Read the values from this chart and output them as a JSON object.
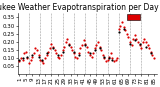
{
  "title": "Milwaukee Weather Evapotranspiration per Day (Ozs sq/ft)",
  "title_fontsize": 5.5,
  "bg_color": "#ffffff",
  "plot_bg_color": "#ffffff",
  "dot_color_red": "#dd0000",
  "dot_color_black": "#000000",
  "legend_bar_color": "#dd0000",
  "legend_bar_outline": "#000000",
  "ylabel_fontsize": 4,
  "xlabel_fontsize": 4,
  "vline_style": "--",
  "vline_color": "#999999",
  "vline_lw": 0.4,
  "dot_size": 2.5,
  "x_values": [
    1,
    2,
    3,
    4,
    5,
    6,
    7,
    8,
    9,
    10,
    11,
    12,
    13,
    14,
    15,
    16,
    17,
    18,
    19,
    20,
    21,
    22,
    23,
    24,
    25,
    26,
    27,
    28,
    29,
    30,
    31,
    32,
    33,
    34,
    35,
    36,
    37,
    38,
    39,
    40,
    41,
    42,
    43,
    44,
    45,
    46,
    47,
    48,
    49,
    50,
    51,
    52,
    53,
    54,
    55,
    56,
    57,
    58,
    59,
    60,
    61,
    62,
    63,
    64,
    65,
    66,
    67,
    68,
    69,
    70,
    71,
    72,
    73,
    74,
    75,
    76,
    77,
    78,
    79,
    80,
    81,
    82,
    83,
    84,
    85
  ],
  "y_values_red": [
    0.08,
    0.1,
    0.09,
    0.13,
    0.14,
    0.1,
    0.07,
    0.09,
    0.11,
    0.13,
    0.16,
    0.15,
    0.12,
    0.09,
    0.08,
    0.07,
    0.1,
    0.12,
    0.14,
    0.16,
    0.19,
    0.17,
    0.15,
    0.13,
    0.11,
    0.1,
    0.12,
    0.15,
    0.17,
    0.2,
    0.22,
    0.19,
    0.17,
    0.15,
    0.13,
    0.11,
    0.1,
    0.13,
    0.16,
    0.18,
    0.21,
    0.19,
    0.17,
    0.14,
    0.12,
    0.11,
    0.13,
    0.16,
    0.18,
    0.2,
    0.17,
    0.15,
    0.12,
    0.1,
    0.08,
    0.09,
    0.11,
    0.13,
    0.1,
    0.08,
    0.09,
    0.1,
    0.28,
    0.3,
    0.32,
    0.29,
    0.27,
    0.25,
    0.23,
    0.2,
    0.18,
    0.22,
    0.24,
    0.22,
    0.2,
    0.18,
    0.16,
    0.2,
    0.22,
    0.2,
    0.18,
    0.16,
    0.14,
    0.12,
    0.1
  ],
  "y_values_black": [
    0.09,
    null,
    0.1,
    null,
    null,
    0.11,
    null,
    null,
    0.12,
    null,
    null,
    null,
    0.11,
    null,
    0.09,
    null,
    null,
    0.13,
    null,
    null,
    null,
    0.16,
    null,
    null,
    0.12,
    null,
    null,
    0.14,
    null,
    null,
    null,
    0.18,
    null,
    null,
    0.14,
    null,
    null,
    0.12,
    null,
    null,
    null,
    0.18,
    null,
    null,
    0.13,
    null,
    null,
    0.15,
    null,
    null,
    0.16,
    null,
    null,
    0.11,
    null,
    null,
    0.1,
    null,
    0.09,
    null,
    null,
    null,
    0.26,
    null,
    null,
    0.28,
    null,
    null,
    null,
    0.19,
    null,
    null,
    0.21,
    null,
    null,
    0.19,
    null,
    null,
    null,
    0.17,
    null,
    null,
    0.13,
    null
  ],
  "vline_positions": [
    7,
    14,
    21,
    28,
    35,
    42,
    49,
    56,
    63,
    70,
    77
  ],
  "yticks": [
    0.05,
    0.1,
    0.15,
    0.2,
    0.25,
    0.3,
    0.35
  ],
  "ytick_labels": [
    "0.05",
    "0.10",
    "0.15",
    "0.20",
    "0.25",
    "0.30",
    "0.35"
  ],
  "xtick_positions": [
    1,
    5,
    9,
    13,
    17,
    21,
    25,
    29,
    33,
    37,
    41,
    45,
    49,
    53,
    57,
    61,
    65,
    69,
    73,
    77,
    81,
    85
  ],
  "xtick_labels": [
    "1",
    "5",
    "9",
    "13",
    "17",
    "21",
    "25",
    "29",
    "33",
    "37",
    "41",
    "45",
    "49",
    "53",
    "57",
    "61",
    "65",
    "69",
    "73",
    "77",
    "81",
    "85"
  ]
}
